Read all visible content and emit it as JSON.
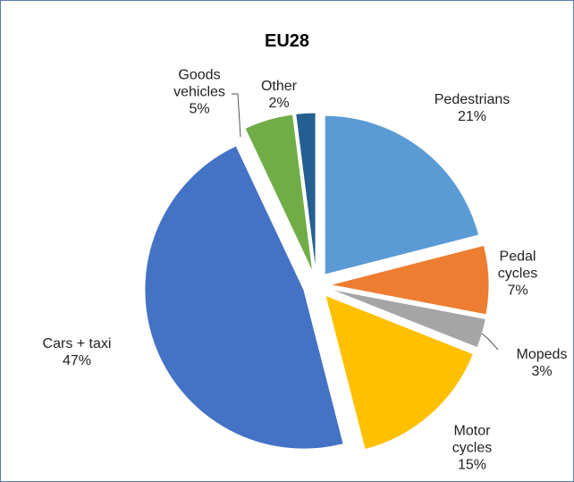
{
  "chart_data": {
    "type": "pie",
    "title": "EU28",
    "categories": [
      "Pedestrians",
      "Pedal cycles",
      "Mopeds",
      "Motor cycles",
      "Cars + taxi",
      "Goods vehicles",
      "Other"
    ],
    "values": [
      21,
      7,
      3,
      15,
      47,
      5,
      2
    ],
    "value_labels": [
      "21%",
      "7%",
      "3%",
      "15%",
      "47%",
      "5%",
      "2%"
    ],
    "colors": [
      "#5b9bd5",
      "#ed7d31",
      "#a5a5a5",
      "#ffc000",
      "#4472c4",
      "#70ad47",
      "#255e91"
    ]
  }
}
